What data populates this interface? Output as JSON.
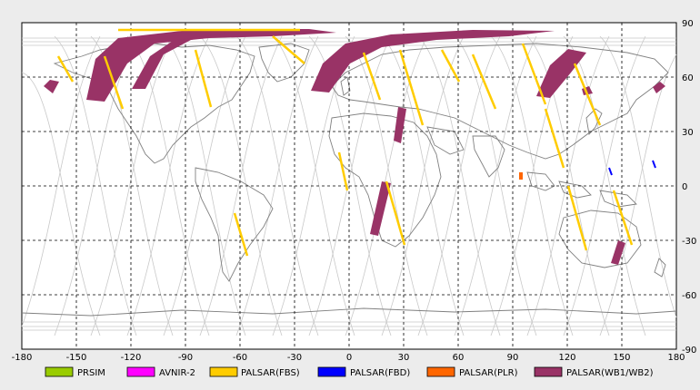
{
  "map": {
    "x_ticks": [
      "-180",
      "-150",
      "-120",
      "-90",
      "-60",
      "-30",
      "0",
      "30",
      "60",
      "90",
      "120",
      "150",
      "180"
    ],
    "y_ticks": [
      "90",
      "60",
      "30",
      "0",
      "-30",
      "-60",
      "-90"
    ],
    "colors": {
      "background": "#ffffff",
      "frame": "#000000",
      "grid": "#000000",
      "coast": "#808080",
      "orbit": "#c8c8c8"
    }
  },
  "legend": [
    {
      "label": "PRSIM",
      "color": "#99cc00"
    },
    {
      "label": "AVNIR-2",
      "color": "#ff00ff"
    },
    {
      "label": "PALSAR(FBS)",
      "color": "#ffcc00"
    },
    {
      "label": "PALSAR(FBD)",
      "color": "#0000ff"
    },
    {
      "label": "PALSAR(PLR)",
      "color": "#ff6600"
    },
    {
      "label": "PALSAR(WB1/WB2)",
      "color": "#993366"
    }
  ],
  "swaths": {
    "fbs_color": "#ffcc00",
    "wb_color": "#993366",
    "fbd_color": "#0000ff",
    "plr_color": "#ff6600"
  }
}
